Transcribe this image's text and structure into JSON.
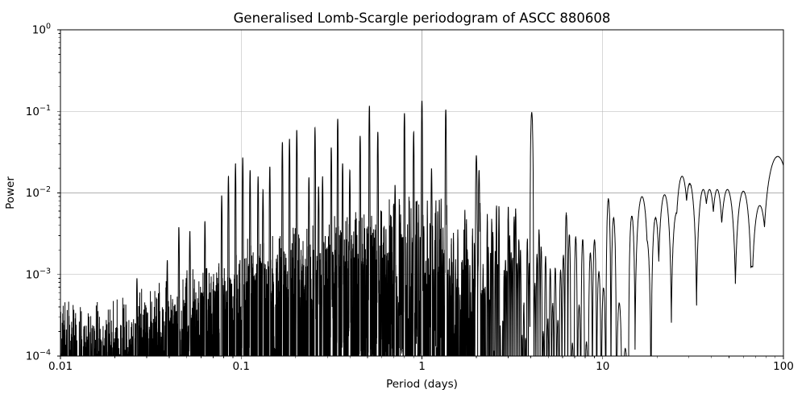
{
  "chart_data": {
    "type": "line",
    "title": "Generalised Lomb-Scargle periodogram of ASCC 880608",
    "xlabel": "Period (days)",
    "ylabel": "Power",
    "xscale": "log",
    "yscale": "log",
    "xlim": [
      0.01,
      100
    ],
    "ylim": [
      0.0001,
      1
    ],
    "grid": true,
    "legend": false,
    "line_color": "#000000",
    "grid_color": "#b0b0b0",
    "background_color": "#ffffff",
    "xticks": [
      {
        "value": 0.01,
        "label": "0.01"
      },
      {
        "value": 0.1,
        "label": "0.1"
      },
      {
        "value": 1,
        "label": "1"
      },
      {
        "value": 10,
        "label": "10"
      },
      {
        "value": 100,
        "label": "100"
      }
    ],
    "yticks": [
      {
        "value": 1,
        "base": "10",
        "exp": "0"
      },
      {
        "value": 0.1,
        "base": "10",
        "exp": "−1"
      },
      {
        "value": 0.01,
        "base": "10",
        "exp": "−2"
      },
      {
        "value": 0.001,
        "base": "10",
        "exp": "−3"
      },
      {
        "value": 0.0001,
        "base": "10",
        "exp": "−4"
      }
    ],
    "peaks": [
      {
        "period": 0.0265,
        "power": 0.0009,
        "width_dex": 0.004
      },
      {
        "period": 0.039,
        "power": 0.0015,
        "width_dex": 0.004
      },
      {
        "period": 0.0452,
        "power": 0.0038,
        "width_dex": 0.004
      },
      {
        "period": 0.052,
        "power": 0.0034,
        "width_dex": 0.004
      },
      {
        "period": 0.063,
        "power": 0.0045,
        "width_dex": 0.004
      },
      {
        "period": 0.078,
        "power": 0.0093,
        "width_dex": 0.004
      },
      {
        "period": 0.085,
        "power": 0.016,
        "width_dex": 0.004
      },
      {
        "period": 0.093,
        "power": 0.023,
        "width_dex": 0.004
      },
      {
        "period": 0.102,
        "power": 0.027,
        "width_dex": 0.004
      },
      {
        "period": 0.112,
        "power": 0.019,
        "width_dex": 0.004
      },
      {
        "period": 0.124,
        "power": 0.016,
        "width_dex": 0.004
      },
      {
        "period": 0.132,
        "power": 0.011,
        "width_dex": 0.004
      },
      {
        "period": 0.144,
        "power": 0.021,
        "width_dex": 0.004
      },
      {
        "period": 0.169,
        "power": 0.042,
        "width_dex": 0.004
      },
      {
        "period": 0.185,
        "power": 0.046,
        "width_dex": 0.004
      },
      {
        "period": 0.203,
        "power": 0.059,
        "width_dex": 0.004
      },
      {
        "period": 0.237,
        "power": 0.0155,
        "width_dex": 0.004
      },
      {
        "period": 0.256,
        "power": 0.063,
        "width_dex": 0.004
      },
      {
        "period": 0.268,
        "power": 0.012,
        "width_dex": 0.004
      },
      {
        "period": 0.282,
        "power": 0.016,
        "width_dex": 0.004
      },
      {
        "period": 0.315,
        "power": 0.036,
        "width_dex": 0.004
      },
      {
        "period": 0.342,
        "power": 0.081,
        "width_dex": 0.004
      },
      {
        "period": 0.364,
        "power": 0.023,
        "width_dex": 0.004
      },
      {
        "period": 0.399,
        "power": 0.019,
        "width_dex": 0.004
      },
      {
        "period": 0.455,
        "power": 0.05,
        "width_dex": 0.004
      },
      {
        "period": 0.512,
        "power": 0.117,
        "width_dex": 0.004
      },
      {
        "period": 0.57,
        "power": 0.056,
        "width_dex": 0.004
      },
      {
        "period": 0.71,
        "power": 0.0125,
        "width_dex": 0.004
      },
      {
        "period": 0.8,
        "power": 0.095,
        "width_dex": 0.004
      },
      {
        "period": 0.9,
        "power": 0.056,
        "width_dex": 0.004
      },
      {
        "period": 1.0,
        "power": 0.135,
        "width_dex": 0.0045
      },
      {
        "period": 1.13,
        "power": 0.02,
        "width_dex": 0.004
      },
      {
        "period": 1.355,
        "power": 0.105,
        "width_dex": 0.0045
      },
      {
        "period": 2.0,
        "power": 0.029,
        "width_dex": 0.006
      },
      {
        "period": 2.07,
        "power": 0.019,
        "width_dex": 0.005
      },
      {
        "period": 4.05,
        "power": 0.097,
        "width_dex": 0.01
      },
      {
        "period": 16.5,
        "power": 0.009,
        "width_dex": 0.04
      },
      {
        "period": 22,
        "power": 0.0095,
        "width_dex": 0.04
      },
      {
        "period": 27.5,
        "power": 0.016,
        "width_dex": 0.045
      },
      {
        "period": 36,
        "power": 0.011,
        "width_dex": 0.04
      },
      {
        "period": 39,
        "power": 0.011,
        "width_dex": 0.04
      },
      {
        "period": 43,
        "power": 0.011,
        "width_dex": 0.04
      },
      {
        "period": 49,
        "power": 0.011,
        "width_dex": 0.05
      },
      {
        "period": 60,
        "power": 0.0105,
        "width_dex": 0.05
      },
      {
        "period": 74,
        "power": 0.007,
        "width_dex": 0.05
      },
      {
        "period": 93,
        "power": 0.028,
        "width_dex": 0.09
      }
    ],
    "noise_envelope": [
      {
        "period": 0.01,
        "level": 0.00011
      },
      {
        "period": 0.02,
        "level": 0.00011
      },
      {
        "period": 0.04,
        "level": 0.00022
      },
      {
        "period": 0.07,
        "level": 0.00036
      },
      {
        "period": 0.1,
        "level": 0.00055
      },
      {
        "period": 0.2,
        "level": 0.0009
      },
      {
        "period": 0.4,
        "level": 0.0014
      },
      {
        "period": 0.7,
        "level": 0.002
      },
      {
        "period": 1,
        "level": 0.0026
      },
      {
        "period": 2,
        "level": 0.0022
      },
      {
        "period": 4,
        "level": 0.0018
      },
      {
        "period": 8,
        "level": 0.0026
      },
      {
        "period": 20,
        "level": 0.0035
      },
      {
        "period": 50,
        "level": 0.0045
      },
      {
        "period": 100,
        "level": 0.009
      }
    ],
    "generator": {
      "window_delta_f": 0.006,
      "lobe_exponent": 1.7,
      "n_samples": 10000,
      "seed": 880608
    }
  }
}
